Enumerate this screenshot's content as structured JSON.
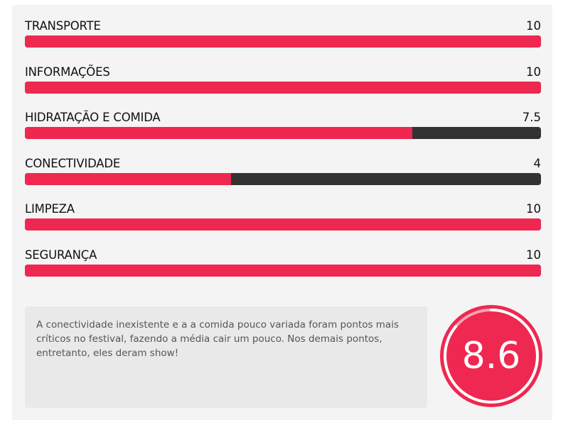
{
  "ratings": [
    {
      "label": "TRANSPORTE",
      "value": "10",
      "fraction": 1.0
    },
    {
      "label": "INFORMAÇÕES",
      "value": "10",
      "fraction": 1.0
    },
    {
      "label": "HIDRATAÇÃO E COMIDA",
      "value": "7.5",
      "fraction": 0.75
    },
    {
      "label": "CONECTIVIDADE",
      "value": "4",
      "fraction": 0.4
    },
    {
      "label": "LIMPEZA",
      "value": "10",
      "fraction": 1.0
    },
    {
      "label": "SEGURANÇA",
      "value": "10",
      "fraction": 1.0
    }
  ],
  "summary": {
    "text": "A conectividade inexistente e a a comida pouco variada foram pontos mais críticos no festival, fazendo a média cair um pouco. Nos demais pontos, entretanto, eles deram show!"
  },
  "score": {
    "value": "8.6",
    "fraction": 0.86
  },
  "colors": {
    "accent": "#ee2850",
    "track": "#333333",
    "panel": "#f4f4f4",
    "summary_bg": "#e9e9e9"
  }
}
